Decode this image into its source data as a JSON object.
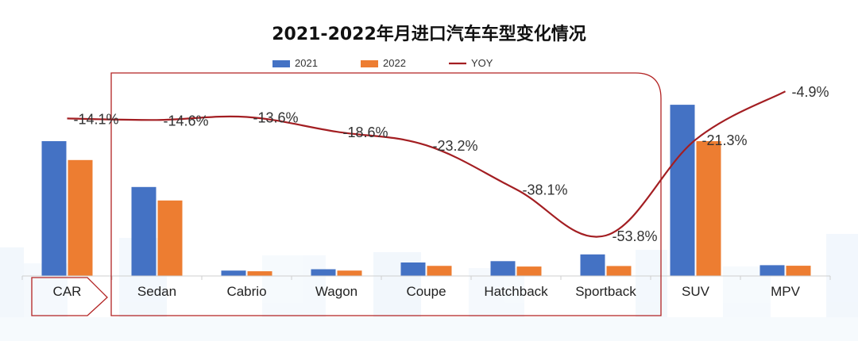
{
  "chart_data": {
    "type": "bar",
    "title": "2021-2022年月进口汽车车型变化情况",
    "categories": [
      "CAR",
      "Sedan",
      "Cabrio",
      "Wagon",
      "Coupe",
      "Hatchback",
      "Sportback",
      "SUV",
      "MPV"
    ],
    "series": [
      {
        "name": "2021",
        "color": "#4472C4",
        "values": [
          100,
          66,
          4,
          5,
          10,
          11,
          16,
          127,
          8
        ]
      },
      {
        "name": "2022",
        "color": "#ED7D31",
        "values": [
          86,
          56,
          3.5,
          4,
          7.5,
          7,
          7.4,
          100,
          7.6
        ]
      }
    ],
    "line_series": {
      "name": "YOY",
      "color": "#A31E22",
      "values": [
        -14.1,
        -14.6,
        -13.6,
        -18.6,
        -23.2,
        -38.1,
        -53.8,
        -21.3,
        -4.9
      ],
      "labels": [
        "-14.1%",
        "-14.6%",
        "-13.6%",
        "-18.6%",
        "-23.2%",
        "-38.1%",
        "-53.8%",
        "-21.3%",
        "-4.9%"
      ]
    },
    "ylim": [
      0,
      140
    ],
    "line_ylim": [
      -60,
      0
    ],
    "legend_position": "top-center",
    "grid": false,
    "xlabel": "",
    "ylabel": ""
  }
}
